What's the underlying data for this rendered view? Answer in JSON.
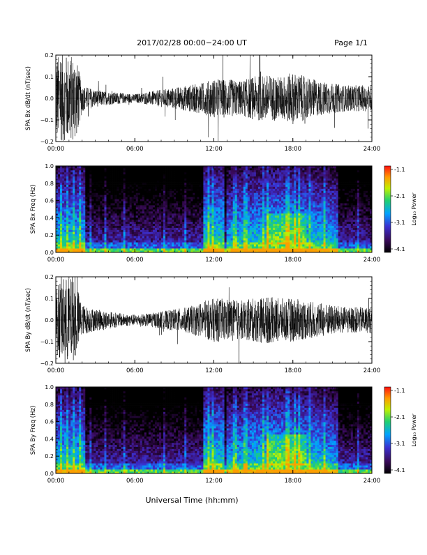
{
  "page": {
    "title": "2017/02/28  00:00−24:00 UT",
    "page_label": "Page 1/1",
    "xlabel": "Universal Time (hh:mm)"
  },
  "colorbar": {
    "label": "Log₁₀ Power",
    "ticks": [
      "-1.1",
      "-2.1",
      "-3.1",
      "-4.1"
    ],
    "range": [
      -4.1,
      -1.1
    ],
    "colors": [
      "#000000",
      "#3a0a5a",
      "#3a2fd0",
      "#00a2ff",
      "#20d070",
      "#c0f000",
      "#ff9a00",
      "#ff1010"
    ]
  },
  "chart_data": [
    {
      "type": "line",
      "id": "bx-dbdt",
      "ylabel": "SPA Bx dB/dt (nT/sec)",
      "xticks": [
        "00:00",
        "06:00",
        "12:00",
        "18:00",
        "24:00"
      ],
      "yticks": [
        "0.2",
        "0.1",
        "0.0",
        "−0.1",
        "−0.2"
      ],
      "xlim": [
        0,
        24
      ],
      "ylim": [
        -0.2,
        0.2
      ],
      "envelope": {
        "x_hours": [
          0,
          0.5,
          1,
          1.5,
          2,
          3,
          4,
          5,
          6,
          7,
          8,
          9,
          10,
          11,
          12,
          13,
          14,
          15,
          16,
          17,
          18,
          19,
          20,
          21,
          22,
          23,
          24
        ],
        "amplitude": [
          0.2,
          0.2,
          0.2,
          0.2,
          0.06,
          0.04,
          0.03,
          0.025,
          0.02,
          0.03,
          0.04,
          0.05,
          0.06,
          0.07,
          0.09,
          0.09,
          0.08,
          0.1,
          0.11,
          0.1,
          0.12,
          0.1,
          0.08,
          0.07,
          0.06,
          0.06,
          0.06
        ]
      }
    },
    {
      "type": "heatmap",
      "id": "bx-freq",
      "ylabel": "SPA Bx Freq (Hz)",
      "xticks": [
        "00:00",
        "06:00",
        "12:00",
        "18:00",
        "24:00"
      ],
      "yticks": [
        "1.0",
        "0.8",
        "0.6",
        "0.4",
        "0.2",
        "0.0"
      ],
      "xlim": [
        0,
        24
      ],
      "ylim": [
        0,
        1.0
      ],
      "zlim": [
        -4.1,
        -1.1
      ]
    },
    {
      "type": "line",
      "id": "by-dbdt",
      "ylabel": "SPA By dB/dt (nT/sec)",
      "xticks": [
        "00:00",
        "06:00",
        "12:00",
        "18:00",
        "24:00"
      ],
      "yticks": [
        "0.2",
        "0.1",
        "0.0",
        "−0.1",
        "−0.2"
      ],
      "xlim": [
        0,
        24
      ],
      "ylim": [
        -0.2,
        0.2
      ],
      "envelope": {
        "x_hours": [
          0,
          0.5,
          1,
          1.5,
          2,
          3,
          4,
          5,
          6,
          7,
          8,
          9,
          10,
          11,
          12,
          13,
          14,
          15,
          16,
          17,
          18,
          19,
          20,
          21,
          22,
          23,
          24
        ],
        "amplitude": [
          0.15,
          0.2,
          0.2,
          0.18,
          0.07,
          0.05,
          0.04,
          0.03,
          0.025,
          0.03,
          0.04,
          0.05,
          0.06,
          0.08,
          0.1,
          0.1,
          0.09,
          0.1,
          0.11,
          0.1,
          0.1,
          0.09,
          0.08,
          0.07,
          0.06,
          0.06,
          0.06
        ]
      }
    },
    {
      "type": "heatmap",
      "id": "by-freq",
      "ylabel": "SPA By Freq (Hz)",
      "xticks": [
        "00:00",
        "06:00",
        "12:00",
        "18:00",
        "24:00"
      ],
      "yticks": [
        "1.0",
        "0.8",
        "0.6",
        "0.4",
        "0.2",
        "0.0"
      ],
      "xlim": [
        0,
        24
      ],
      "ylim": [
        0,
        1.0
      ],
      "zlim": [
        -4.1,
        -1.1
      ]
    }
  ]
}
